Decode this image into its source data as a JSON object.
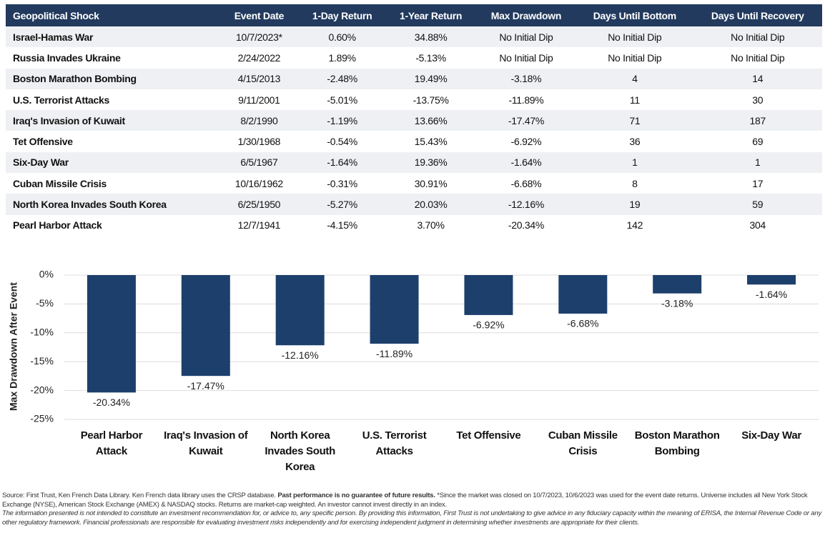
{
  "table": {
    "header": [
      "Geopolitical Shock",
      "Event Date",
      "1-Day Return",
      "1-Year Return",
      "Max Drawdown",
      "Days Until Bottom",
      "Days Until Recovery"
    ],
    "rows": [
      [
        "Israel-Hamas War",
        "10/7/2023*",
        "0.60%",
        "34.88%",
        "No Initial Dip",
        "No Initial Dip",
        "No Initial Dip"
      ],
      [
        "Russia Invades Ukraine",
        "2/24/2022",
        "1.89%",
        "-5.13%",
        "No Initial Dip",
        "No Initial Dip",
        "No Initial Dip"
      ],
      [
        "Boston Marathon Bombing",
        "4/15/2013",
        "-2.48%",
        "19.49%",
        "-3.18%",
        "4",
        "14"
      ],
      [
        "U.S. Terrorist Attacks",
        "9/11/2001",
        "-5.01%",
        "-13.75%",
        "-11.89%",
        "11",
        "30"
      ],
      [
        "Iraq's Invasion of Kuwait",
        "8/2/1990",
        "-1.19%",
        "13.66%",
        "-17.47%",
        "71",
        "187"
      ],
      [
        "Tet Offensive",
        "1/30/1968",
        "-0.54%",
        "15.43%",
        "-6.92%",
        "36",
        "69"
      ],
      [
        "Six-Day War",
        "6/5/1967",
        "-1.64%",
        "19.36%",
        "-1.64%",
        "1",
        "1"
      ],
      [
        "Cuban Missile Crisis",
        "10/16/1962",
        "-0.31%",
        "30.91%",
        "-6.68%",
        "8",
        "17"
      ],
      [
        "North Korea Invades South Korea",
        "6/25/1950",
        "-5.27%",
        "20.03%",
        "-12.16%",
        "19",
        "59"
      ],
      [
        "Pearl Harbor Attack",
        "12/7/1941",
        "-4.15%",
        "3.70%",
        "-20.34%",
        "142",
        "304"
      ]
    ]
  },
  "chart_data": {
    "type": "bar",
    "y_label": "Max Drawdown After Event",
    "categories": [
      "Pearl Harbor Attack",
      "Iraq's Invasion of Kuwait",
      "North Korea Invades South Korea",
      "U.S. Terrorist Attacks",
      "Tet Offensive",
      "Cuban Missile Crisis",
      "Boston Marathon Bombing",
      "Six-Day War"
    ],
    "values": [
      -20.34,
      -17.47,
      -12.16,
      -11.89,
      -6.92,
      -6.68,
      -3.18,
      -1.64
    ],
    "value_labels": [
      "-20.34%",
      "-17.47%",
      "-12.16%",
      "-11.89%",
      "-6.92%",
      "-6.68%",
      "-3.18%",
      "-1.64%"
    ],
    "color": "#1d3f6c",
    "ylim": [
      -25,
      0
    ],
    "yticks": [
      {
        "value": 0,
        "label": "0%"
      },
      {
        "value": -5,
        "label": "-5%"
      },
      {
        "value": -10,
        "label": "-10%"
      },
      {
        "value": -15,
        "label": "-15%"
      },
      {
        "value": -20,
        "label": "-20%"
      },
      {
        "value": -25,
        "label": "-25%"
      }
    ],
    "grid": true
  },
  "footnotes": {
    "source_start": "Source: First Trust, Ken French Data Library. Ken French data library uses the CRSP database. ",
    "source_bold": "Past performance is no guarantee of future results.",
    "source_end": " *Since the market was closed on 10/7/2023, 10/6/2023 was used for the event date returns. Universe includes all New York Stock Exchange (NYSE), American Stock Exchange (AMEX) & NASDAQ stocks. Returns are market-cap weighted. An investor cannot invest directly in an index.",
    "disclaimer": "The information presented is not intended to constitute an investment recommendation for, or advice to, any specific person. By providing this information, First Trust is not undertaking to give advice in any fiduciary capacity within the meaning of ERISA, the Internal Revenue Code or any other regulatory framework. Financial professionals are responsible for evaluating investment risks independently and for exercising independent judgment in determining whether investments are appropriate for their clients."
  }
}
